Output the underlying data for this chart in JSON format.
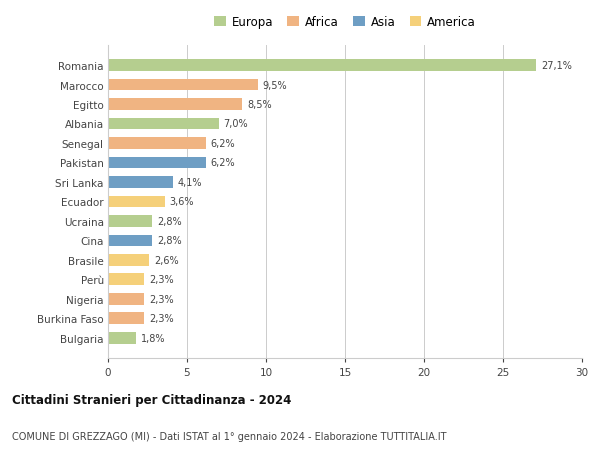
{
  "countries": [
    "Romania",
    "Marocco",
    "Egitto",
    "Albania",
    "Senegal",
    "Pakistan",
    "Sri Lanka",
    "Ecuador",
    "Ucraina",
    "Cina",
    "Brasile",
    "Perù",
    "Nigeria",
    "Burkina Faso",
    "Bulgaria"
  ],
  "values": [
    27.1,
    9.5,
    8.5,
    7.0,
    6.2,
    6.2,
    4.1,
    3.6,
    2.8,
    2.8,
    2.6,
    2.3,
    2.3,
    2.3,
    1.8
  ],
  "labels": [
    "27,1%",
    "9,5%",
    "8,5%",
    "7,0%",
    "6,2%",
    "6,2%",
    "4,1%",
    "3,6%",
    "2,8%",
    "2,8%",
    "2,6%",
    "2,3%",
    "2,3%",
    "2,3%",
    "1,8%"
  ],
  "colors": [
    "#b5ce8f",
    "#f0b482",
    "#f0b482",
    "#b5ce8f",
    "#f0b482",
    "#6e9ec4",
    "#6e9ec4",
    "#f5d07a",
    "#b5ce8f",
    "#6e9ec4",
    "#f5d07a",
    "#f5d07a",
    "#f0b482",
    "#f0b482",
    "#b5ce8f"
  ],
  "legend_labels": [
    "Europa",
    "Africa",
    "Asia",
    "America"
  ],
  "legend_colors": [
    "#b5ce8f",
    "#f0b482",
    "#6e9ec4",
    "#f5d07a"
  ],
  "title_bold": "Cittadini Stranieri per Cittadinanza - 2024",
  "subtitle": "COMUNE DI GREZZAGO (MI) - Dati ISTAT al 1° gennaio 2024 - Elaborazione TUTTITALIA.IT",
  "xlim": [
    0,
    30
  ],
  "xticks": [
    0,
    5,
    10,
    15,
    20,
    25,
    30
  ],
  "background_color": "#ffffff",
  "grid_color": "#cccccc"
}
